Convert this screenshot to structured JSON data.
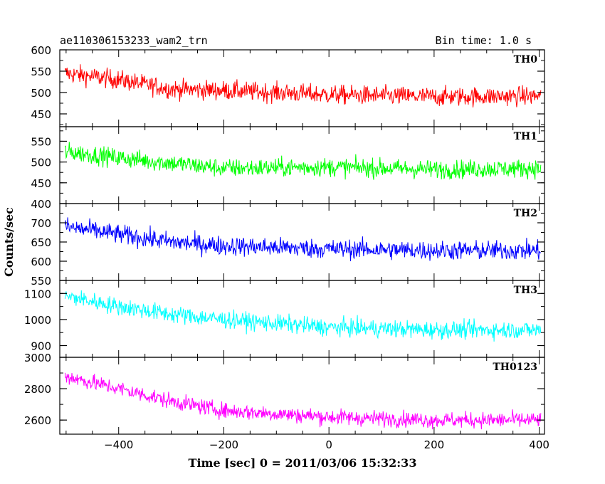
{
  "header": {
    "title": "ae110306153233_wam2_trn",
    "bin_time": "Bin time: 1.0 s"
  },
  "chart_data": {
    "type": "line",
    "xlabel": "Time [sec] 0 = 2011/03/06 15:32:33",
    "ylabel": "Counts/sec",
    "xlim": [
      -512,
      410
    ],
    "data_x_range": [
      -502,
      403
    ],
    "x_step": 1,
    "xticks": [
      -400,
      -200,
      0,
      200,
      400
    ],
    "xtick_labels": [
      "−400",
      "−200",
      "0",
      "200",
      "400"
    ],
    "grid": false,
    "panels": [
      {
        "name": "TH0",
        "color": "#ff0000",
        "ylim": [
          420,
          600
        ],
        "yticks": [
          450,
          500,
          550,
          600
        ],
        "ytick_labels": [
          "450",
          "500",
          "550",
          "600"
        ],
        "trend": [
          [
            -502,
            545
          ],
          [
            -400,
            530
          ],
          [
            -300,
            508
          ],
          [
            -200,
            505
          ],
          [
            0,
            495
          ],
          [
            200,
            490
          ],
          [
            403,
            492
          ]
        ],
        "noise_amp": 40
      },
      {
        "name": "TH1",
        "color": "#00ff00",
        "ylim": [
          400,
          585
        ],
        "yticks": [
          400,
          450,
          500,
          550
        ],
        "ytick_labels": [
          "400",
          "450",
          "500",
          "550"
        ],
        "trend": [
          [
            -502,
            525
          ],
          [
            -400,
            510
          ],
          [
            -200,
            485
          ],
          [
            0,
            488
          ],
          [
            200,
            482
          ],
          [
            403,
            485
          ]
        ],
        "noise_amp": 40
      },
      {
        "name": "TH2",
        "color": "#0000ff",
        "ylim": [
          550,
          750
        ],
        "yticks": [
          550,
          600,
          650,
          700
        ],
        "ytick_labels": [
          "550",
          "600",
          "650",
          "700"
        ],
        "trend": [
          [
            -502,
            690
          ],
          [
            -400,
            670
          ],
          [
            -300,
            650
          ],
          [
            -200,
            640
          ],
          [
            0,
            632
          ],
          [
            200,
            628
          ],
          [
            403,
            628
          ]
        ],
        "noise_amp": 45
      },
      {
        "name": "TH3",
        "color": "#00ffff",
        "ylim": [
          855,
          1150
        ],
        "yticks": [
          900,
          1000,
          1100
        ],
        "ytick_labels": [
          "900",
          "1000",
          "1100"
        ],
        "trend": [
          [
            -502,
            1090
          ],
          [
            -400,
            1050
          ],
          [
            -300,
            1020
          ],
          [
            -200,
            1000
          ],
          [
            0,
            970
          ],
          [
            200,
            960
          ],
          [
            403,
            960
          ]
        ],
        "noise_amp": 60
      },
      {
        "name": "TH0123",
        "color": "#ff00ff",
        "ylim": [
          2510,
          3000
        ],
        "yticks": [
          2600,
          2800,
          3000
        ],
        "ytick_labels": [
          "2600",
          "2800",
          "3000"
        ],
        "trend": [
          [
            -502,
            2880
          ],
          [
            -400,
            2800
          ],
          [
            -300,
            2720
          ],
          [
            -200,
            2660
          ],
          [
            0,
            2620
          ],
          [
            200,
            2600
          ],
          [
            403,
            2600
          ]
        ],
        "noise_amp": 90
      }
    ]
  }
}
